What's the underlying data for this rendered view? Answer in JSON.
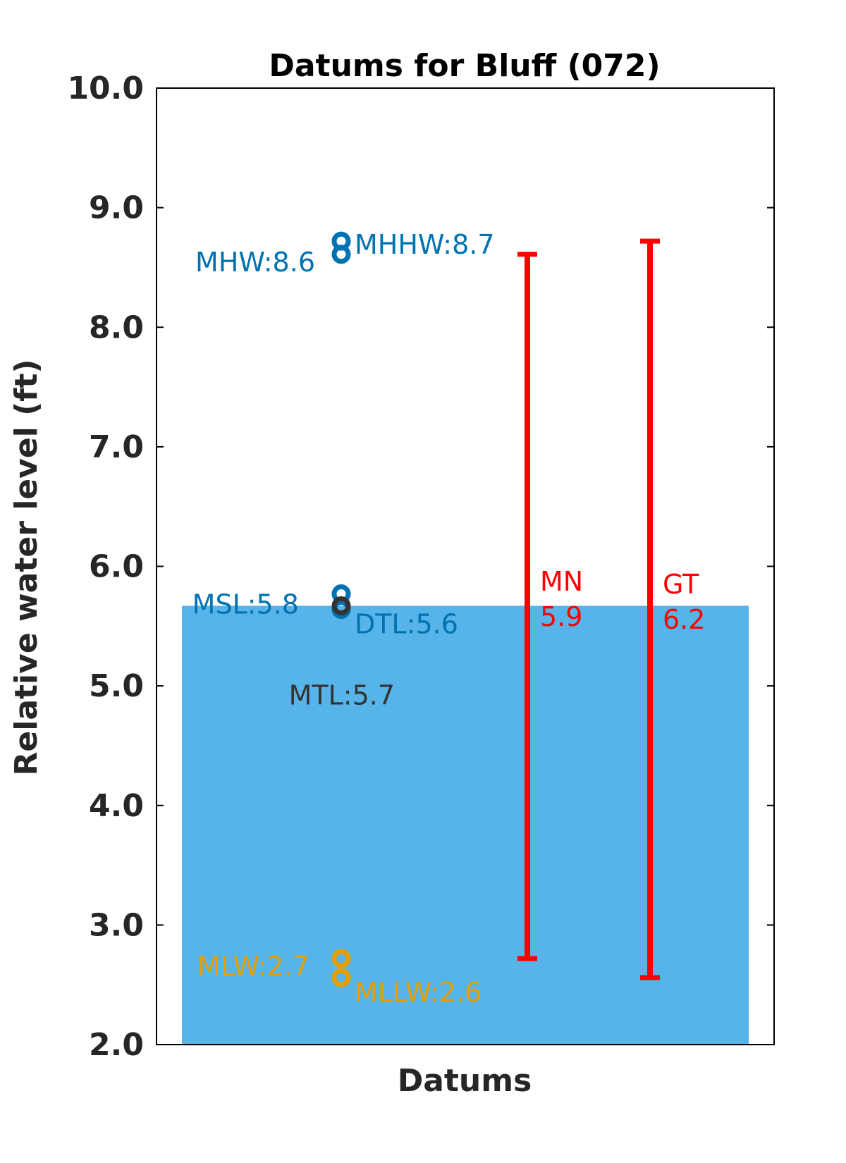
{
  "chart_data": {
    "type": "scatter",
    "title": "Datums for Bluff (072)",
    "xlabel": "Datums",
    "ylabel": "Relative water level (ft)",
    "ylim": [
      2.0,
      10.0
    ],
    "yticks": [
      "2.0",
      "3.0",
      "4.0",
      "5.0",
      "6.0",
      "7.0",
      "8.0",
      "9.0",
      "10.0"
    ],
    "background_bar": {
      "value": 5.67,
      "color": "#56B4E9"
    },
    "points": [
      {
        "label": "MHHW:8.7",
        "value": 8.72,
        "color": "#0072B2"
      },
      {
        "label": "MHW:8.6",
        "value": 8.61,
        "color": "#0072B2"
      },
      {
        "label": "MSL:5.8",
        "value": 5.77,
        "color": "#0072B2"
      },
      {
        "label": "DTL:5.6",
        "value": 5.64,
        "color": "#0072B2"
      },
      {
        "label": "MTL:5.7",
        "value": 5.67,
        "color": "#333333"
      },
      {
        "label": "MLW:2.7",
        "value": 2.72,
        "color": "#E69F00"
      },
      {
        "label": "MLLW:2.6",
        "value": 2.56,
        "color": "#E69F00"
      }
    ],
    "ranges": [
      {
        "name": "MN",
        "value_label": "5.9",
        "low": 2.72,
        "high": 8.61,
        "color": "#FF0000"
      },
      {
        "name": "GT",
        "value_label": "6.2",
        "low": 2.56,
        "high": 8.72,
        "color": "#FF0000"
      }
    ]
  }
}
